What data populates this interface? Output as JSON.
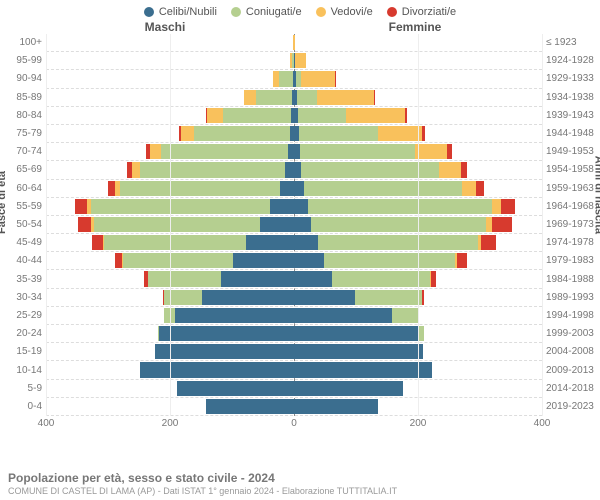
{
  "legend": [
    {
      "label": "Celibi/Nubili",
      "color": "#3b6e8f"
    },
    {
      "label": "Coniugati/e",
      "color": "#b5cf90"
    },
    {
      "label": "Vedovi/e",
      "color": "#f9c15c"
    },
    {
      "label": "Divorziati/e",
      "color": "#d73a2e"
    }
  ],
  "gender": {
    "male": "Maschi",
    "female": "Femmine"
  },
  "axes": {
    "y_left_title": "Fasce di età",
    "y_right_title": "Anni di nascita",
    "x_max": 400,
    "x_ticks": [
      400,
      200,
      0,
      200,
      400
    ]
  },
  "footer": {
    "title": "Popolazione per età, sesso e stato civile - 2024",
    "sub": "COMUNE DI CASTEL DI LAMA (AP) - Dati ISTAT 1° gennaio 2024 - Elaborazione TUTTITALIA.IT"
  },
  "colors": {
    "celibi": "#3b6e8f",
    "coniugati": "#b5cf90",
    "vedovi": "#f9c15c",
    "divorziati": "#d73a2e"
  },
  "rows": [
    {
      "age": "100+",
      "birth": "≤ 1923",
      "m": {
        "c": 0,
        "k": 0,
        "v": 2,
        "d": 0
      },
      "f": {
        "c": 0,
        "k": 0,
        "v": 2,
        "d": 0
      }
    },
    {
      "age": "95-99",
      "birth": "1924-1928",
      "m": {
        "c": 0,
        "k": 3,
        "v": 4,
        "d": 0
      },
      "f": {
        "c": 1,
        "k": 1,
        "v": 18,
        "d": 0
      }
    },
    {
      "age": "90-94",
      "birth": "1929-1933",
      "m": {
        "c": 2,
        "k": 22,
        "v": 10,
        "d": 0
      },
      "f": {
        "c": 3,
        "k": 8,
        "v": 55,
        "d": 1
      }
    },
    {
      "age": "85-89",
      "birth": "1934-1938",
      "m": {
        "c": 3,
        "k": 58,
        "v": 20,
        "d": 0
      },
      "f": {
        "c": 5,
        "k": 32,
        "v": 92,
        "d": 2
      }
    },
    {
      "age": "80-84",
      "birth": "1939-1943",
      "m": {
        "c": 5,
        "k": 110,
        "v": 25,
        "d": 2
      },
      "f": {
        "c": 6,
        "k": 78,
        "v": 95,
        "d": 4
      }
    },
    {
      "age": "75-79",
      "birth": "1944-1948",
      "m": {
        "c": 6,
        "k": 155,
        "v": 22,
        "d": 3
      },
      "f": {
        "c": 8,
        "k": 128,
        "v": 70,
        "d": 5
      }
    },
    {
      "age": "70-74",
      "birth": "1949-1953",
      "m": {
        "c": 10,
        "k": 205,
        "v": 18,
        "d": 6
      },
      "f": {
        "c": 10,
        "k": 185,
        "v": 52,
        "d": 8
      }
    },
    {
      "age": "65-69",
      "birth": "1954-1958",
      "m": {
        "c": 14,
        "k": 235,
        "v": 12,
        "d": 8
      },
      "f": {
        "c": 12,
        "k": 222,
        "v": 35,
        "d": 10
      }
    },
    {
      "age": "60-64",
      "birth": "1959-1963",
      "m": {
        "c": 22,
        "k": 258,
        "v": 8,
        "d": 12
      },
      "f": {
        "c": 16,
        "k": 255,
        "v": 22,
        "d": 14
      }
    },
    {
      "age": "55-59",
      "birth": "1964-1968",
      "m": {
        "c": 38,
        "k": 290,
        "v": 6,
        "d": 20
      },
      "f": {
        "c": 22,
        "k": 298,
        "v": 14,
        "d": 22
      }
    },
    {
      "age": "50-54",
      "birth": "1969-1973",
      "m": {
        "c": 55,
        "k": 268,
        "v": 4,
        "d": 22
      },
      "f": {
        "c": 28,
        "k": 282,
        "v": 10,
        "d": 32
      }
    },
    {
      "age": "45-49",
      "birth": "1974-1978",
      "m": {
        "c": 78,
        "k": 228,
        "v": 2,
        "d": 18
      },
      "f": {
        "c": 38,
        "k": 258,
        "v": 6,
        "d": 24
      }
    },
    {
      "age": "40-44",
      "birth": "1979-1983",
      "m": {
        "c": 98,
        "k": 178,
        "v": 1,
        "d": 12
      },
      "f": {
        "c": 48,
        "k": 212,
        "v": 3,
        "d": 16
      }
    },
    {
      "age": "35-39",
      "birth": "1984-1988",
      "m": {
        "c": 118,
        "k": 118,
        "v": 0,
        "d": 6
      },
      "f": {
        "c": 62,
        "k": 158,
        "v": 1,
        "d": 8
      }
    },
    {
      "age": "30-34",
      "birth": "1989-1993",
      "m": {
        "c": 148,
        "k": 62,
        "v": 0,
        "d": 2
      },
      "f": {
        "c": 98,
        "k": 108,
        "v": 0,
        "d": 4
      }
    },
    {
      "age": "25-29",
      "birth": "1994-1998",
      "m": {
        "c": 192,
        "k": 18,
        "v": 0,
        "d": 0
      },
      "f": {
        "c": 158,
        "k": 42,
        "v": 0,
        "d": 1
      }
    },
    {
      "age": "20-24",
      "birth": "1999-2003",
      "m": {
        "c": 218,
        "k": 2,
        "v": 0,
        "d": 0
      },
      "f": {
        "c": 202,
        "k": 8,
        "v": 0,
        "d": 0
      }
    },
    {
      "age": "15-19",
      "birth": "2004-2008",
      "m": {
        "c": 225,
        "k": 0,
        "v": 0,
        "d": 0
      },
      "f": {
        "c": 208,
        "k": 0,
        "v": 0,
        "d": 0
      }
    },
    {
      "age": "10-14",
      "birth": "2009-2013",
      "m": {
        "c": 248,
        "k": 0,
        "v": 0,
        "d": 0
      },
      "f": {
        "c": 222,
        "k": 0,
        "v": 0,
        "d": 0
      }
    },
    {
      "age": "5-9",
      "birth": "2014-2018",
      "m": {
        "c": 188,
        "k": 0,
        "v": 0,
        "d": 0
      },
      "f": {
        "c": 175,
        "k": 0,
        "v": 0,
        "d": 0
      }
    },
    {
      "age": "0-4",
      "birth": "2019-2023",
      "m": {
        "c": 142,
        "k": 0,
        "v": 0,
        "d": 0
      },
      "f": {
        "c": 135,
        "k": 0,
        "v": 0,
        "d": 0
      }
    }
  ]
}
